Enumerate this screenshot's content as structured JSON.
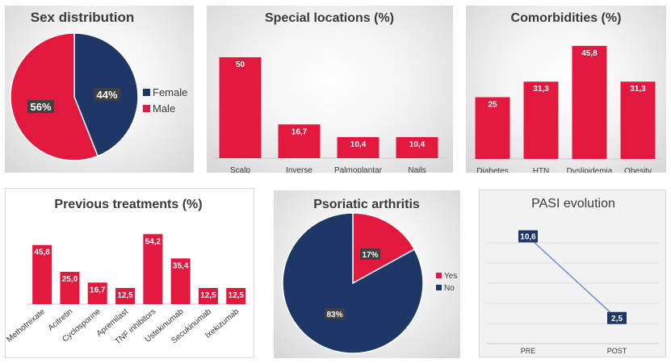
{
  "colors": {
    "red": "#e3183f",
    "navy": "#1f3766",
    "label_bg": "#404040",
    "line": "#6f8fcc",
    "text": "#3a3a3a"
  },
  "chart_data": [
    {
      "id": "sex",
      "type": "pie",
      "title": "Sex distribution",
      "labels": [
        "Female",
        "Male"
      ],
      "values": [
        44,
        56
      ],
      "data_labels": [
        "44%",
        "56%"
      ],
      "legend": "right"
    },
    {
      "id": "special",
      "type": "bar",
      "title": "Special locations (%)",
      "categories": [
        "Scalp",
        "Inverse",
        "Palmoplantar",
        "Nails"
      ],
      "values": [
        50,
        16.7,
        10.4,
        10.4
      ],
      "data_labels": [
        "50",
        "16,7",
        "10,4",
        "10,4"
      ],
      "ylim": [
        0,
        60
      ]
    },
    {
      "id": "comorb",
      "type": "bar",
      "title": "Comorbidities (%)",
      "categories": [
        "Diabetes",
        "HTN",
        "Dyslipidemia",
        "Obesity"
      ],
      "values": [
        25,
        31.3,
        45.8,
        31.3
      ],
      "data_labels": [
        "25",
        "31,3",
        "45,8",
        "31,3"
      ],
      "ylim": [
        0,
        50
      ]
    },
    {
      "id": "prev",
      "type": "bar",
      "title": "Previous treatments (%)",
      "categories": [
        "Methotrexate",
        "Acitretin",
        "Cyclosporine",
        "Apremilast",
        "TNF inhibitors",
        "Ustekinumab",
        "Secukinumab",
        "Ixekizumab"
      ],
      "values": [
        45.8,
        25.0,
        16.7,
        12.5,
        54.2,
        35.4,
        12.5,
        12.5
      ],
      "data_labels": [
        "45,8",
        "25,0",
        "16,7",
        "12,5",
        "54,2",
        "35,4",
        "12,5",
        "12,5"
      ],
      "ylim": [
        0,
        60
      ]
    },
    {
      "id": "psa",
      "type": "pie",
      "title": "Psoriatic arthritis",
      "labels": [
        "Yes",
        "No"
      ],
      "values": [
        17,
        83
      ],
      "data_labels": [
        "17%",
        "83%"
      ],
      "legend": "right"
    },
    {
      "id": "pasi",
      "type": "line",
      "title": "PASI evolution",
      "categories": [
        "PRE",
        "POST"
      ],
      "values": [
        10.6,
        2.5
      ],
      "data_labels": [
        "10,6",
        "2,5"
      ],
      "ylim": [
        0,
        12
      ]
    }
  ]
}
